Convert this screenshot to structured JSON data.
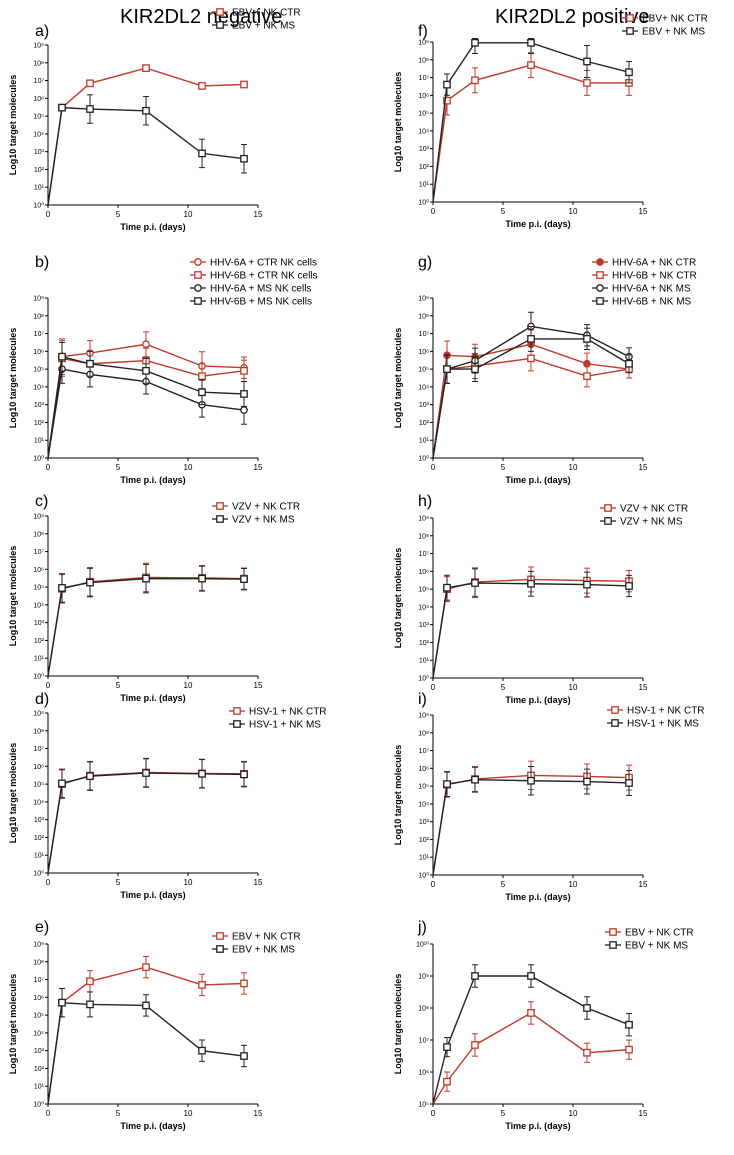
{
  "headers": {
    "left": "KIR2DL2 negative",
    "right": "KIR2DL2 positive"
  },
  "colors": {
    "ctr": "#c0392b",
    "ms": "#222222"
  },
  "chart_data": [
    {
      "panel": "a)",
      "type": "line",
      "xlabel": "Time p.i. (days)",
      "ylabel": "Log10 target molecules",
      "xlim": [
        0,
        15
      ],
      "xticks": [
        0,
        5,
        10,
        15
      ],
      "ylog": true,
      "yexp": [
        0,
        9
      ],
      "ytick_labels": [
        "10⁰",
        "10¹",
        "10²",
        "10³",
        "10⁴",
        "10⁵",
        "10⁶",
        "10⁷",
        "10⁸",
        "10⁹"
      ],
      "legend_position": "top-right",
      "series": [
        {
          "name": "EBV + NK CTR",
          "color": "ctr",
          "marker": "square",
          "filled": false,
          "x": [
            0,
            1,
            3,
            7,
            11,
            14
          ],
          "y": [
            1,
            300000,
            7000000,
            50000000,
            5000000,
            6000000
          ],
          "err": [
            0,
            0,
            0,
            0,
            0,
            0
          ]
        },
        {
          "name": "EBV + NK MS",
          "color": "ms",
          "marker": "square",
          "filled": false,
          "x": [
            0,
            1,
            3,
            7,
            11,
            14
          ],
          "y": [
            1,
            300000,
            250000,
            200000,
            800,
            400
          ],
          "err": [
            0,
            0,
            0.8,
            0.8,
            0.8,
            0.8
          ]
        }
      ]
    },
    {
      "panel": "f)",
      "type": "line",
      "xlabel": "Time p.i. (days)",
      "ylabel": "Log10 target molecules",
      "xlim": [
        0,
        15
      ],
      "xticks": [
        0,
        5,
        10,
        15
      ],
      "ylog": true,
      "yexp": [
        0,
        9
      ],
      "ytick_labels": [
        "10⁰",
        "10¹",
        "10²",
        "10³",
        "10⁴",
        "10⁵",
        "10⁶",
        "10⁷",
        "10⁸",
        "10⁹"
      ],
      "legend_position": "top-right",
      "series": [
        {
          "name": "EBV+ NK CTR",
          "color": "ctr",
          "marker": "square",
          "filled": false,
          "x": [
            0,
            1,
            3,
            7,
            11,
            14
          ],
          "y": [
            1,
            500000,
            7000000,
            50000000,
            5000000,
            5000000
          ],
          "err": [
            0,
            0.8,
            0.7,
            0.7,
            0.7,
            0.7
          ]
        },
        {
          "name": "EBV + NK MS",
          "color": "ms",
          "marker": "square",
          "filled": false,
          "x": [
            0,
            1,
            3,
            7,
            11,
            14
          ],
          "y": [
            1,
            4000000,
            900000000,
            900000000,
            80000000,
            20000000
          ],
          "err": [
            0,
            0.6,
            0.6,
            0.6,
            0.9,
            0.6
          ]
        }
      ]
    },
    {
      "panel": "b)",
      "type": "line",
      "xlabel": "Time p.i. (days)",
      "ylabel": "Log10 target molecules",
      "xlim": [
        0,
        15
      ],
      "xticks": [
        0,
        5,
        10,
        15
      ],
      "ylog": true,
      "yexp": [
        0,
        9
      ],
      "ytick_labels": [
        "10⁰",
        "10¹",
        "10²",
        "10³",
        "10⁴",
        "10⁵",
        "10⁶",
        "10⁷",
        "10⁸",
        "10⁹"
      ],
      "legend_position": "top-right",
      "series": [
        {
          "name": "HHV-6A + CTR NK cells",
          "color": "ctr",
          "marker": "circle",
          "filled": false,
          "x": [
            0,
            1,
            3,
            7,
            11,
            14
          ],
          "y": [
            1,
            500000,
            800000,
            2500000,
            150000,
            120000
          ],
          "err": [
            0,
            1,
            0.7,
            0.7,
            0.8,
            0.6
          ]
        },
        {
          "name": "HHV-6B + CTR NK cells",
          "color": "ctr",
          "marker": "square",
          "filled": false,
          "x": [
            0,
            1,
            3,
            7,
            11,
            14
          ],
          "y": [
            1,
            400000,
            200000,
            300000,
            40000,
            80000
          ],
          "err": [
            0,
            1,
            0.7,
            0.7,
            0.7,
            0.6
          ]
        },
        {
          "name": "HHV-6A + MS NK cells",
          "color": "ms",
          "marker": "circle",
          "filled": false,
          "x": [
            0,
            1,
            3,
            7,
            11,
            14
          ],
          "y": [
            1,
            100000,
            50000,
            20000,
            1000,
            500
          ],
          "err": [
            0,
            0.8,
            0.7,
            0.7,
            0.7,
            0.8
          ]
        },
        {
          "name": "HHV-6B + MS NK cells",
          "color": "ms",
          "marker": "square",
          "filled": false,
          "x": [
            0,
            1,
            3,
            7,
            11,
            14
          ],
          "y": [
            1,
            500000,
            200000,
            80000,
            5000,
            4000
          ],
          "err": [
            0,
            0.8,
            0.7,
            0.7,
            0.7,
            0.7
          ]
        }
      ]
    },
    {
      "panel": "g)",
      "type": "line",
      "xlabel": "Time p.i. (days)",
      "ylabel": "Log10 target molecules",
      "xlim": [
        0,
        15
      ],
      "xticks": [
        0,
        5,
        10,
        15
      ],
      "ylog": true,
      "yexp": [
        0,
        9
      ],
      "ytick_labels": [
        "10⁰",
        "10¹",
        "10²",
        "10³",
        "10⁴",
        "10⁵",
        "10⁶",
        "10⁷",
        "10⁸",
        "10⁹"
      ],
      "legend_position": "top-right",
      "series": [
        {
          "name": "HHV-6A + NK CTR",
          "color": "ctr",
          "marker": "circle",
          "filled": true,
          "x": [
            0,
            1,
            3,
            7,
            11,
            14
          ],
          "y": [
            1,
            600000,
            500000,
            2500000,
            200000,
            100000
          ],
          "err": [
            0,
            0.8,
            0.7,
            0.8,
            0.6,
            0.5
          ]
        },
        {
          "name": "HHV-6B + NK CTR",
          "color": "ctr",
          "marker": "square",
          "filled": false,
          "x": [
            0,
            1,
            3,
            7,
            11,
            14
          ],
          "y": [
            1,
            100000,
            150000,
            400000,
            40000,
            100000
          ],
          "err": [
            0,
            0.8,
            0.7,
            0.7,
            0.6,
            0.5
          ]
        },
        {
          "name": "HHV-6A + NK MS",
          "color": "ms",
          "marker": "circle",
          "filled": false,
          "x": [
            0,
            1,
            3,
            7,
            11,
            14
          ],
          "y": [
            1,
            100000,
            300000,
            25000000,
            8000000,
            500000
          ],
          "err": [
            0,
            0.8,
            0.7,
            0.8,
            0.6,
            0.5
          ]
        },
        {
          "name": "HHV-6B + NK MS",
          "color": "ms",
          "marker": "square",
          "filled": false,
          "x": [
            0,
            1,
            3,
            7,
            11,
            14
          ],
          "y": [
            1,
            100000,
            100000,
            5000000,
            5000000,
            200000
          ],
          "err": [
            0,
            0.8,
            0.7,
            0.7,
            0.6,
            0.5
          ]
        }
      ]
    },
    {
      "panel": "c)",
      "type": "line",
      "xlabel": "Time p.i. (days)",
      "ylabel": "Log10 target molecules",
      "xlim": [
        0,
        15
      ],
      "xticks": [
        0,
        5,
        10,
        15
      ],
      "ylog": true,
      "yexp": [
        0,
        9
      ],
      "ytick_labels": [
        "10⁰",
        "10¹",
        "10²",
        "10³",
        "10⁴",
        "10⁵",
        "10⁶",
        "10⁷",
        "10⁸",
        "10⁹"
      ],
      "legend_position": "top-right",
      "series": [
        {
          "name": "VZV + NK CTR",
          "color": "ctr",
          "marker": "square",
          "filled": false,
          "x": [
            0,
            1,
            3,
            7,
            11,
            14
          ],
          "y": [
            1,
            80000,
            200000,
            350000,
            330000,
            300000
          ],
          "err": [
            0,
            0.8,
            0.8,
            0.8,
            0.7,
            0.6
          ]
        },
        {
          "name": "VZV + NK MS",
          "color": "ms",
          "marker": "square",
          "filled": false,
          "x": [
            0,
            1,
            3,
            7,
            11,
            14
          ],
          "y": [
            1,
            90000,
            180000,
            300000,
            300000,
            280000
          ],
          "err": [
            0,
            0.8,
            0.8,
            0.8,
            0.7,
            0.6
          ]
        }
      ]
    },
    {
      "panel": "h)",
      "type": "line",
      "xlabel": "Time p.i. (days)",
      "ylabel": "Log10 target molecules",
      "xlim": [
        0,
        15
      ],
      "xticks": [
        0,
        5,
        10,
        15
      ],
      "ylog": true,
      "yexp": [
        0,
        9
      ],
      "ytick_labels": [
        "10⁰",
        "10¹",
        "10²",
        "10³",
        "10⁴",
        "10⁵",
        "10⁶",
        "10⁷",
        "10⁸",
        "10⁹"
      ],
      "legend_position": "top-right",
      "series": [
        {
          "name": "VZV + NK CTR",
          "color": "ctr",
          "marker": "square",
          "filled": false,
          "x": [
            0,
            1,
            3,
            7,
            11,
            14
          ],
          "y": [
            1,
            100000,
            250000,
            350000,
            300000,
            280000
          ],
          "err": [
            0,
            0.7,
            0.8,
            0.7,
            0.7,
            0.6
          ]
        },
        {
          "name": "VZV +  NK MS",
          "color": "ms",
          "marker": "square",
          "filled": false,
          "x": [
            0,
            1,
            3,
            7,
            11,
            14
          ],
          "y": [
            1,
            120000,
            220000,
            200000,
            180000,
            150000
          ],
          "err": [
            0,
            0.7,
            0.8,
            0.7,
            0.7,
            0.6
          ]
        }
      ]
    },
    {
      "panel": "d)",
      "type": "line",
      "xlabel": "Time p.i. (days)",
      "ylabel": "Log10 target molecules",
      "xlim": [
        0,
        15
      ],
      "xticks": [
        0,
        5,
        10,
        15
      ],
      "ylog": true,
      "yexp": [
        0,
        9
      ],
      "ytick_labels": [
        "10⁰",
        "10¹",
        "10²",
        "10³",
        "10⁴",
        "10⁵",
        "10⁶",
        "10⁷",
        "10⁸",
        "10⁹"
      ],
      "legend_position": "top-right",
      "series": [
        {
          "name": "HSV-1 + NK CTR",
          "color": "ctr",
          "marker": "square",
          "filled": false,
          "x": [
            0,
            1,
            3,
            7,
            11,
            14
          ],
          "y": [
            1,
            100000,
            300000,
            450000,
            400000,
            380000
          ],
          "err": [
            0,
            0.8,
            0.8,
            0.8,
            0.8,
            0.7
          ]
        },
        {
          "name": "HSV-1 + NK MS",
          "color": "ms",
          "marker": "square",
          "filled": false,
          "x": [
            0,
            1,
            3,
            7,
            11,
            14
          ],
          "y": [
            1,
            110000,
            280000,
            420000,
            380000,
            350000
          ],
          "err": [
            0,
            0.8,
            0.8,
            0.8,
            0.8,
            0.7
          ]
        }
      ]
    },
    {
      "panel": "i)",
      "type": "line",
      "xlabel": "Time p.i. (days)",
      "ylabel": "Log10 target molecules",
      "xlim": [
        0,
        15
      ],
      "xticks": [
        0,
        5,
        10,
        15
      ],
      "ylog": true,
      "yexp": [
        0,
        9
      ],
      "ytick_labels": [
        "10⁰",
        "10¹",
        "10²",
        "10³",
        "10⁴",
        "10⁵",
        "10⁶",
        "10⁷",
        "10⁸",
        "10⁹"
      ],
      "legend_position": "top-right",
      "series": [
        {
          "name": "HSV-1 + NK CTR",
          "color": "ctr",
          "marker": "square",
          "filled": false,
          "x": [
            0,
            1,
            3,
            7,
            11,
            14
          ],
          "y": [
            1,
            120000,
            250000,
            400000,
            350000,
            300000
          ],
          "err": [
            0,
            0.7,
            0.7,
            0.8,
            0.7,
            0.7
          ]
        },
        {
          "name": "HSV-1 + NK MS",
          "color": "ms",
          "marker": "square",
          "filled": false,
          "x": [
            0,
            1,
            3,
            7,
            11,
            14
          ],
          "y": [
            1,
            130000,
            230000,
            200000,
            180000,
            150000
          ],
          "err": [
            0,
            0.7,
            0.7,
            0.8,
            0.7,
            0.7
          ]
        }
      ]
    },
    {
      "panel": "e)",
      "type": "line",
      "xlabel": "Time p.i. (days)",
      "ylabel": "Log10 target molecules",
      "xlim": [
        0,
        15
      ],
      "xticks": [
        0,
        5,
        10,
        15
      ],
      "ylog": true,
      "yexp": [
        0,
        9
      ],
      "ytick_labels": [
        "10⁰",
        "10¹",
        "10²",
        "10³",
        "10⁴",
        "10⁵",
        "10⁶",
        "10⁷",
        "10⁸",
        "10⁹"
      ],
      "legend_position": "top-right",
      "series": [
        {
          "name": "EBV + NK CTR",
          "color": "ctr",
          "marker": "square",
          "filled": false,
          "x": [
            0,
            1,
            3,
            7,
            11,
            14
          ],
          "y": [
            1,
            500000,
            8000000,
            50000000,
            5000000,
            6000000
          ],
          "err": [
            0,
            0.8,
            0.6,
            0.6,
            0.6,
            0.6
          ]
        },
        {
          "name": "EBV + NK MS",
          "color": "ms",
          "marker": "square",
          "filled": false,
          "x": [
            0,
            1,
            3,
            7,
            11,
            14
          ],
          "y": [
            1,
            500000,
            400000,
            350000,
            1000,
            500
          ],
          "err": [
            0,
            0.8,
            0.7,
            0.6,
            0.6,
            0.6
          ]
        }
      ]
    },
    {
      "panel": "j)",
      "type": "line",
      "xlabel": "Time p.i. (days)",
      "ylabel": "Log10 target molecules",
      "xlim": [
        0,
        15
      ],
      "xticks": [
        0,
        5,
        10,
        15
      ],
      "ylog": true,
      "yexp": [
        5,
        10
      ],
      "ytick_labels": [
        "10⁵",
        "10⁶",
        "10⁷",
        "10⁸",
        "10⁹",
        "10¹⁰"
      ],
      "legend_position": "top-right",
      "series": [
        {
          "name": "EBV + NK CTR",
          "color": "ctr",
          "marker": "square",
          "filled": false,
          "x": [
            0,
            1,
            3,
            7,
            11,
            14
          ],
          "y": [
            100000,
            500000,
            7000000,
            70000000,
            4000000,
            5000000
          ],
          "err": [
            0,
            0.3,
            0.35,
            0.35,
            0.3,
            0.3
          ]
        },
        {
          "name": "EBV + NK MS",
          "color": "ms",
          "marker": "square",
          "filled": false,
          "x": [
            0,
            1,
            3,
            7,
            11,
            14
          ],
          "y": [
            100000,
            6000000,
            1000000000,
            1000000000,
            100000000,
            30000000
          ],
          "err": [
            0,
            0.3,
            0.35,
            0.35,
            0.35,
            0.35
          ]
        }
      ]
    }
  ]
}
